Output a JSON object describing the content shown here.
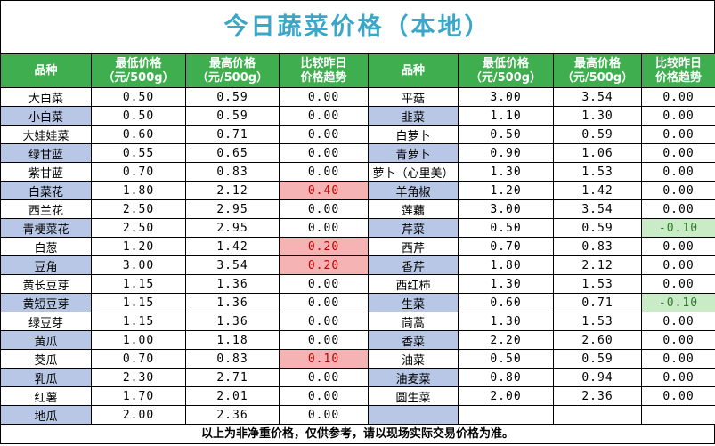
{
  "title": "今日蔬菜价格（本地）",
  "headers": {
    "name": "品种",
    "low_line1": "最低价格",
    "low_line2": "（元/500g）",
    "high_line1": "最高价格",
    "high_line2": "（元/500g）",
    "trend_line1": "比较昨日",
    "trend_line2": "价格趋势"
  },
  "left": [
    {
      "name": "大白菜",
      "low": "0.50",
      "high": "0.59",
      "trend": "0.00",
      "dir": ""
    },
    {
      "name": "小白菜",
      "low": "0.50",
      "high": "0.59",
      "trend": "0.00",
      "dir": ""
    },
    {
      "name": "大娃娃菜",
      "low": "0.60",
      "high": "0.71",
      "trend": "0.00",
      "dir": ""
    },
    {
      "name": "绿甘蓝",
      "low": "0.55",
      "high": "0.65",
      "trend": "0.00",
      "dir": ""
    },
    {
      "name": "紫甘蓝",
      "low": "0.70",
      "high": "0.83",
      "trend": "0.00",
      "dir": ""
    },
    {
      "name": "白菜花",
      "low": "1.80",
      "high": "2.12",
      "trend": "0.40",
      "dir": "up"
    },
    {
      "name": "西兰花",
      "low": "2.50",
      "high": "2.95",
      "trend": "0.00",
      "dir": ""
    },
    {
      "name": "青梗菜花",
      "low": "2.50",
      "high": "2.95",
      "trend": "0.00",
      "dir": ""
    },
    {
      "name": "白葱",
      "low": "1.20",
      "high": "1.42",
      "trend": "0.20",
      "dir": "up"
    },
    {
      "name": "豆角",
      "low": "3.00",
      "high": "3.54",
      "trend": "0.20",
      "dir": "up"
    },
    {
      "name": "黄长豆芽",
      "low": "1.15",
      "high": "1.36",
      "trend": "0.00",
      "dir": ""
    },
    {
      "name": "黄短豆芽",
      "low": "1.15",
      "high": "1.36",
      "trend": "0.00",
      "dir": ""
    },
    {
      "name": "绿豆芽",
      "low": "1.15",
      "high": "1.36",
      "trend": "0.00",
      "dir": ""
    },
    {
      "name": "黄瓜",
      "low": "1.00",
      "high": "1.18",
      "trend": "0.00",
      "dir": ""
    },
    {
      "name": "茭瓜",
      "low": "0.70",
      "high": "0.83",
      "trend": "0.10",
      "dir": "up"
    },
    {
      "name": "乳瓜",
      "low": "2.30",
      "high": "2.71",
      "trend": "0.00",
      "dir": ""
    },
    {
      "name": "红薯",
      "low": "1.70",
      "high": "2.01",
      "trend": "0.00",
      "dir": ""
    },
    {
      "name": "地瓜",
      "low": "2.00",
      "high": "2.36",
      "trend": "0.00",
      "dir": ""
    }
  ],
  "right": [
    {
      "name": "平菇",
      "low": "3.00",
      "high": "3.54",
      "trend": "0.00",
      "dir": ""
    },
    {
      "name": "韭菜",
      "low": "1.10",
      "high": "1.30",
      "trend": "0.00",
      "dir": ""
    },
    {
      "name": "白萝卜",
      "low": "0.50",
      "high": "0.59",
      "trend": "0.00",
      "dir": ""
    },
    {
      "name": "青萝卜",
      "low": "0.90",
      "high": "1.06",
      "trend": "0.00",
      "dir": ""
    },
    {
      "name": "萝卜（心里美）",
      "low": "1.30",
      "high": "1.53",
      "trend": "0.00",
      "dir": ""
    },
    {
      "name": "羊角椒",
      "low": "1.20",
      "high": "1.42",
      "trend": "0.00",
      "dir": ""
    },
    {
      "name": "莲藕",
      "low": "3.00",
      "high": "3.54",
      "trend": "0.00",
      "dir": ""
    },
    {
      "name": "芹菜",
      "low": "0.50",
      "high": "0.59",
      "trend": "-0.10",
      "dir": "down"
    },
    {
      "name": "西芹",
      "low": "0.70",
      "high": "0.83",
      "trend": "0.00",
      "dir": ""
    },
    {
      "name": "香芹",
      "low": "1.80",
      "high": "2.12",
      "trend": "0.00",
      "dir": ""
    },
    {
      "name": "西红柿",
      "low": "1.30",
      "high": "1.53",
      "trend": "0.00",
      "dir": ""
    },
    {
      "name": "生菜",
      "low": "0.60",
      "high": "0.71",
      "trend": "-0.10",
      "dir": "down"
    },
    {
      "name": "茼蒿",
      "low": "1.30",
      "high": "1.53",
      "trend": "0.00",
      "dir": ""
    },
    {
      "name": "香菜",
      "low": "2.20",
      "high": "2.60",
      "trend": "0.00",
      "dir": ""
    },
    {
      "name": "油菜",
      "low": "0.50",
      "high": "0.59",
      "trend": "0.00",
      "dir": ""
    },
    {
      "name": "油麦菜",
      "low": "0.80",
      "high": "0.94",
      "trend": "0.00",
      "dir": ""
    },
    {
      "name": "圆生菜",
      "low": "2.00",
      "high": "2.36",
      "trend": "0.00",
      "dir": ""
    }
  ],
  "footer": "以上为非净重价格，仅供参考，请以现场实际交易价格为准。",
  "colors": {
    "header_bg": "#3fae4f",
    "title": "#3aa6c8",
    "alt_row": "#b7c7e5",
    "up": "#f6b3b3",
    "down": "#c9ebc5"
  }
}
